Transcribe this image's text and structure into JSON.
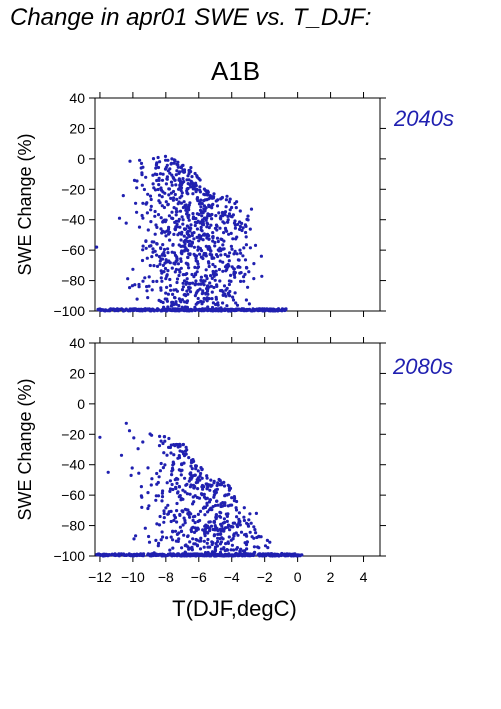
{
  "title": "Change in apr01 SWE vs. T_DJF:",
  "scenario": "A1B",
  "colors": {
    "points": "#2020b0",
    "period_text": "#2020b0",
    "axes": "#000000"
  },
  "chart_data": [
    {
      "type": "scatter",
      "period_label": "2040s",
      "xlabel": "",
      "ylabel": "SWE Change (%)",
      "xlim": [
        -12.3,
        5
      ],
      "ylim": [
        -100,
        40
      ],
      "y_ticks": [
        40,
        20,
        0,
        -20,
        -40,
        -60,
        -80,
        -100
      ],
      "x_ticks": [
        -12,
        -10,
        -8,
        -6,
        -4,
        -2,
        0,
        2,
        4
      ],
      "x_ticklabels_shown": false,
      "cloud": {
        "n_points": 900,
        "x_range": [
          -12.2,
          -1.5
        ],
        "upper_envelope": [
          [
            -12.2,
            0
          ],
          [
            -10,
            1
          ],
          [
            -8,
            2
          ],
          [
            -6.5,
            -5
          ],
          [
            -5.5,
            -20
          ],
          [
            -4,
            -25
          ],
          [
            -3,
            -35
          ],
          [
            -2,
            -55
          ],
          [
            -1.5,
            -85
          ]
        ],
        "baseline_points": 350,
        "baseline_value": -100
      },
      "outliers": [
        [
          -2.8,
          -33
        ],
        [
          -2.2,
          -64
        ],
        [
          -3.5,
          -60
        ],
        [
          -12.2,
          -58
        ]
      ]
    },
    {
      "type": "scatter",
      "period_label": "2080s",
      "xlabel": "T(DJF,degC)",
      "ylabel": "SWE Change (%)",
      "xlim": [
        -12.3,
        5
      ],
      "ylim": [
        -100,
        40
      ],
      "y_ticks": [
        40,
        20,
        0,
        -20,
        -40,
        -60,
        -80,
        -100
      ],
      "x_ticks": [
        -12,
        -10,
        -8,
        -6,
        -4,
        -2,
        0,
        2,
        4
      ],
      "x_ticklabels": [
        "−12",
        "−10",
        "−8",
        "−6",
        "−4",
        "−2",
        "0",
        "2",
        "4"
      ],
      "x_ticklabels_shown": true,
      "cloud": {
        "n_points": 550,
        "x_range": [
          -12.2,
          -0.5
        ],
        "upper_envelope": [
          [
            -12.2,
            -20
          ],
          [
            -10.5,
            -10
          ],
          [
            -8.5,
            -20
          ],
          [
            -7,
            -25
          ],
          [
            -6,
            -40
          ],
          [
            -4,
            -55
          ],
          [
            -3,
            -70
          ],
          [
            -2,
            -85
          ],
          [
            -1,
            -98
          ]
        ],
        "baseline_points": 450,
        "baseline_value": -100
      },
      "outliers": [
        [
          -2.5,
          -72
        ],
        [
          -12,
          -22
        ],
        [
          -11.5,
          -45
        ]
      ]
    }
  ]
}
